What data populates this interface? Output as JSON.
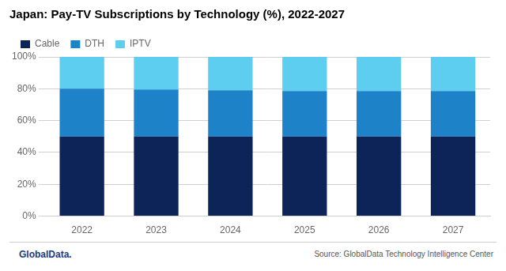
{
  "chart_data": {
    "type": "bar",
    "title": "Japan: Pay-TV Subscriptions by Technology (%), 2022-2027",
    "categories": [
      "2022",
      "2023",
      "2024",
      "2025",
      "2026",
      "2027"
    ],
    "series": [
      {
        "name": "Cable",
        "color": "#0d2458",
        "values": [
          50.0,
          50.0,
          50.0,
          50.0,
          50.0,
          50.0
        ]
      },
      {
        "name": "DTH",
        "color": "#1e82c8",
        "values": [
          30.0,
          29.5,
          29.0,
          28.5,
          28.5,
          28.5
        ]
      },
      {
        "name": "IPTV",
        "color": "#5dcef0",
        "values": [
          20.0,
          20.5,
          21.0,
          21.5,
          21.5,
          21.5
        ]
      }
    ],
    "stacked": true,
    "ylim": [
      0,
      100
    ],
    "yticks": [
      {
        "value": 0,
        "label": "0%"
      },
      {
        "value": 20,
        "label": "20%"
      },
      {
        "value": 40,
        "label": "40%"
      },
      {
        "value": 60,
        "label": "60%"
      },
      {
        "value": 80,
        "label": "80%"
      },
      {
        "value": 100,
        "label": "100%"
      }
    ],
    "grid": true,
    "legend": "top",
    "annotations": [
      "GlobalData.",
      "Source: GlobalData Technology Intelligence Center"
    ]
  }
}
